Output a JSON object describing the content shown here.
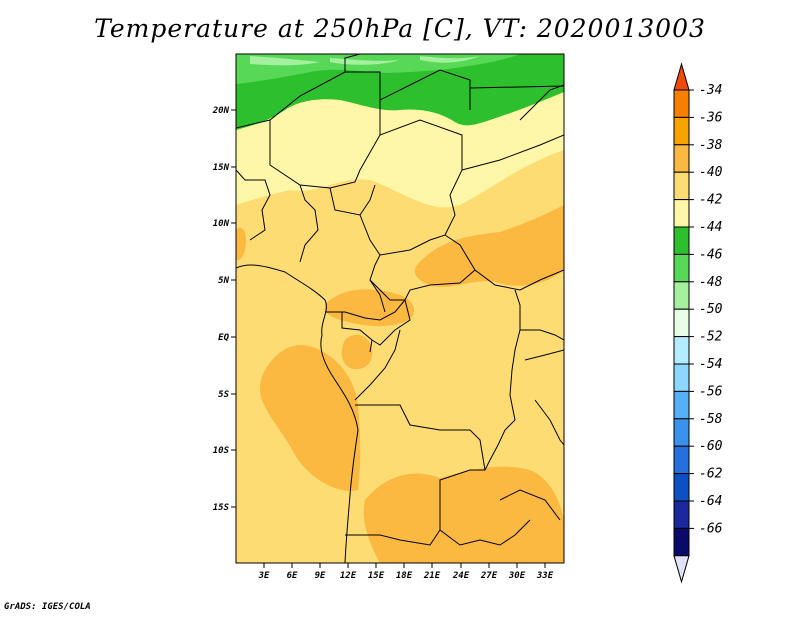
{
  "title": "Temperature at 250hPa [C], VT: 2020013003",
  "footer": "GrADS: IGES/COLA",
  "map": {
    "lat_ticks": [
      "20N",
      "15N",
      "10N",
      "5N",
      "EQ",
      "5S",
      "10S",
      "15S"
    ],
    "lon_ticks": [
      "3E",
      "6E",
      "9E",
      "12E",
      "15E",
      "18E",
      "21E",
      "24E",
      "27E",
      "30E",
      "33E"
    ]
  },
  "colorbar": {
    "labels": [
      "-34",
      "-36",
      "-38",
      "-40",
      "-42",
      "-44",
      "-46",
      "-48",
      "-50",
      "-52",
      "-54",
      "-56",
      "-58",
      "-60",
      "-62",
      "-64",
      "-66"
    ],
    "colors": [
      "#f04a0a",
      "#f77f00",
      "#f7a300",
      "#fbb941",
      "#fedc74",
      "#fff7a8",
      "#2dbf2d",
      "#57d957",
      "#a4f09e",
      "#e6ffe6",
      "#b3ecff",
      "#8cd7ff",
      "#56b0f5",
      "#3a92ec",
      "#2570dc",
      "#0e4fc1",
      "#1a2a9e",
      "#0a0a6b",
      "#e1e1f8"
    ]
  }
}
